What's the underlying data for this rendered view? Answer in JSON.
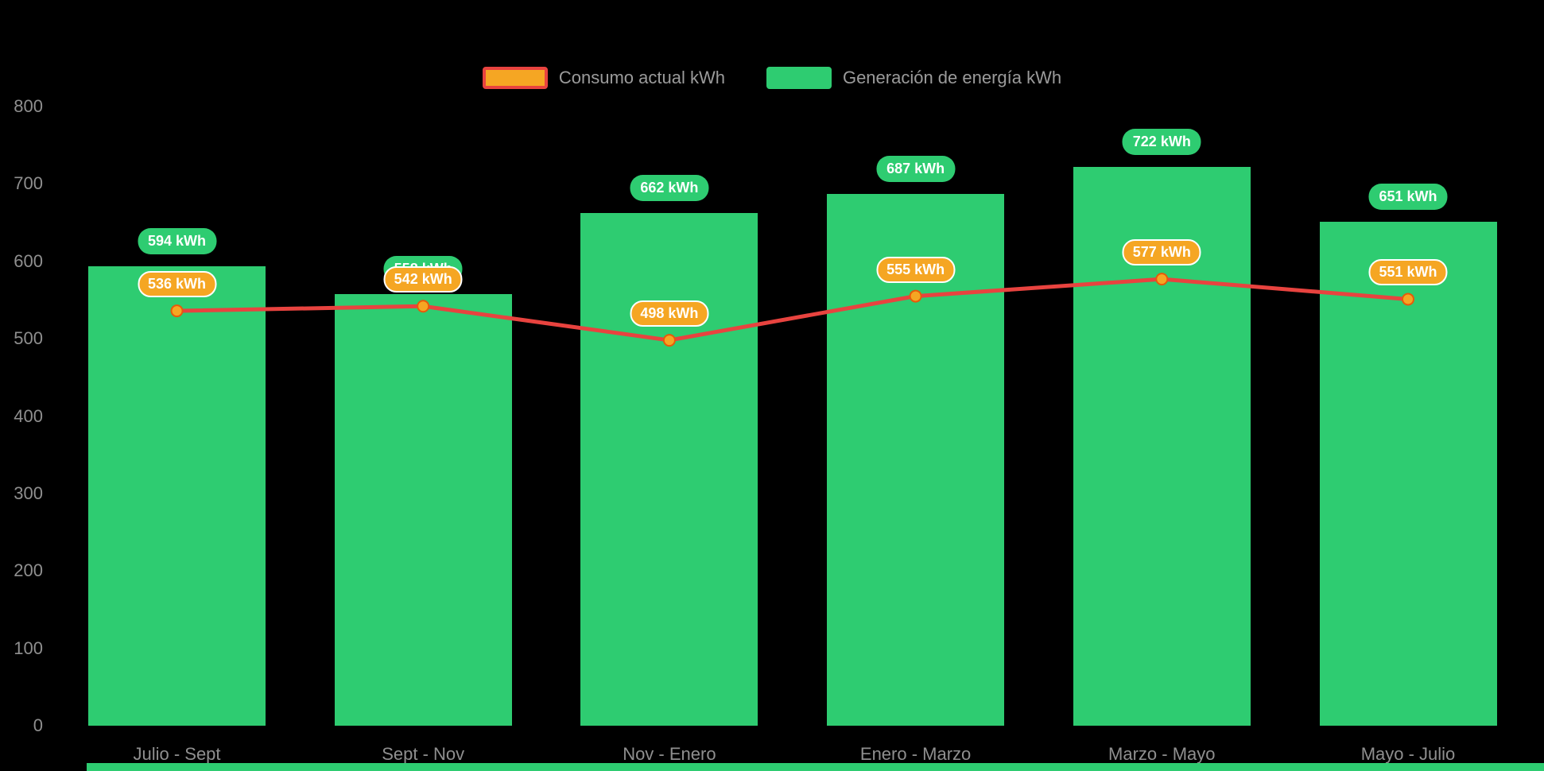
{
  "page": {
    "background": "#000000"
  },
  "colors": {
    "bar_green": "#2ecc71",
    "line_red": "#e8433f",
    "marker_orange": "#f5a623",
    "axis_text": "#8f8f8f",
    "legend_text": "#9b9b9b",
    "badge_text": "#ffffff"
  },
  "legend": {
    "items": [
      {
        "id": "consumo",
        "label": "Consumo actual kWh",
        "swatch_fill": "#f5a623",
        "swatch_border": "#e8433f"
      },
      {
        "id": "generacion",
        "label": "Generación de energía kWh",
        "swatch_fill": "#2ecc71",
        "swatch_border": "#2ecc71"
      }
    ]
  },
  "chart_data": {
    "type": "bar+line",
    "categories": [
      "Julio - Sept",
      "Sept - Nov",
      "Nov - Enero",
      "Enero - Marzo",
      "Marzo - Mayo",
      "Mayo - Julio"
    ],
    "series": [
      {
        "name": "Generación de energía kWh",
        "type": "bar",
        "color": "#2ecc71",
        "values": [
          594,
          558,
          662,
          687,
          722,
          651
        ],
        "labels": [
          "594 kWh",
          "558 kWh",
          "662 kWh",
          "687 kWh",
          "722 kWh",
          "651 kWh"
        ]
      },
      {
        "name": "Consumo actual kWh",
        "type": "line",
        "color": "#e8433f",
        "marker_color": "#f5a623",
        "values": [
          536,
          542,
          498,
          555,
          577,
          551
        ],
        "labels": [
          "536 kWh",
          "542 kWh",
          "498 kWh",
          "555 kWh",
          "577 kWh",
          "551 kWh"
        ]
      }
    ],
    "unit": "kWh",
    "ylim": [
      0,
      800
    ],
    "yticks": [
      0,
      100,
      200,
      300,
      400,
      500,
      600,
      700,
      800
    ],
    "grid": false,
    "legend_position": "top-center"
  }
}
